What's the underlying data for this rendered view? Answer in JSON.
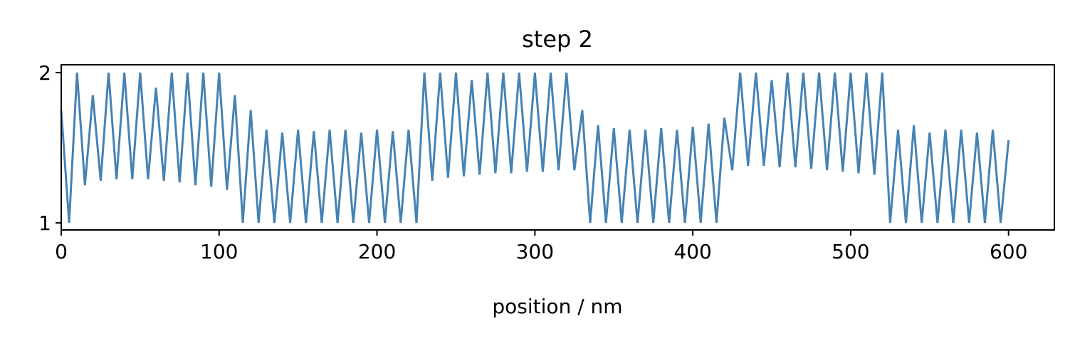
{
  "chart_data": {
    "type": "line",
    "title": "step 2",
    "xlabel": "position / nm",
    "x": [
      0,
      5,
      10,
      15,
      20,
      25,
      30,
      35,
      40,
      45,
      50,
      55,
      60,
      65,
      70,
      75,
      80,
      85,
      90,
      95,
      100,
      105,
      110,
      115,
      120,
      125,
      130,
      135,
      140,
      145,
      150,
      155,
      160,
      165,
      170,
      175,
      180,
      185,
      190,
      195,
      200,
      205,
      210,
      215,
      220,
      225,
      230,
      235,
      240,
      245,
      250,
      255,
      260,
      265,
      270,
      275,
      280,
      285,
      290,
      295,
      300,
      305,
      310,
      315,
      320,
      325,
      330,
      335,
      340,
      345,
      350,
      355,
      360,
      365,
      370,
      375,
      380,
      385,
      390,
      395,
      400,
      405,
      410,
      415,
      420,
      425,
      430,
      435,
      440,
      445,
      450,
      455,
      460,
      465,
      470,
      475,
      480,
      485,
      490,
      495,
      500,
      505,
      510,
      515,
      520,
      525,
      530,
      535,
      540,
      545,
      550,
      555,
      560,
      565,
      570,
      575,
      580,
      585,
      590,
      595,
      600
    ],
    "series": [
      {
        "color": "#4682b4",
        "values": [
          1.75,
          1.0,
          2.0,
          1.25,
          1.85,
          1.28,
          2.0,
          1.29,
          2.0,
          1.29,
          2.0,
          1.29,
          1.9,
          1.28,
          2.0,
          1.27,
          2.0,
          1.25,
          2.0,
          1.24,
          2.0,
          1.22,
          1.85,
          1.0,
          1.75,
          1.0,
          1.62,
          1.0,
          1.6,
          1.0,
          1.62,
          1.0,
          1.61,
          1.0,
          1.62,
          1.0,
          1.62,
          1.0,
          1.6,
          1.0,
          1.62,
          1.0,
          1.61,
          1.0,
          1.62,
          1.0,
          2.0,
          1.28,
          2.0,
          1.3,
          2.0,
          1.31,
          1.95,
          1.32,
          2.0,
          1.33,
          2.0,
          1.33,
          2.0,
          1.34,
          2.0,
          1.34,
          2.0,
          1.35,
          2.0,
          1.35,
          1.75,
          1.0,
          1.65,
          1.0,
          1.63,
          1.0,
          1.62,
          1.0,
          1.62,
          1.0,
          1.63,
          1.0,
          1.62,
          1.0,
          1.64,
          1.0,
          1.66,
          1.0,
          1.7,
          1.35,
          2.0,
          1.38,
          2.0,
          1.38,
          1.95,
          1.37,
          2.0,
          1.37,
          2.0,
          1.36,
          2.0,
          1.35,
          2.0,
          1.34,
          2.0,
          1.33,
          2.0,
          1.32,
          2.0,
          1.0,
          1.62,
          1.0,
          1.65,
          1.0,
          1.6,
          1.0,
          1.62,
          1.0,
          1.62,
          1.0,
          1.6,
          1.0,
          1.62,
          1.0,
          1.55
        ]
      }
    ],
    "xlim": [
      0,
      629
    ],
    "ylim": [
      0.953,
      2.052
    ],
    "xticks": [
      0,
      100,
      200,
      300,
      400,
      500,
      600
    ],
    "yticks": [
      1,
      2
    ]
  }
}
